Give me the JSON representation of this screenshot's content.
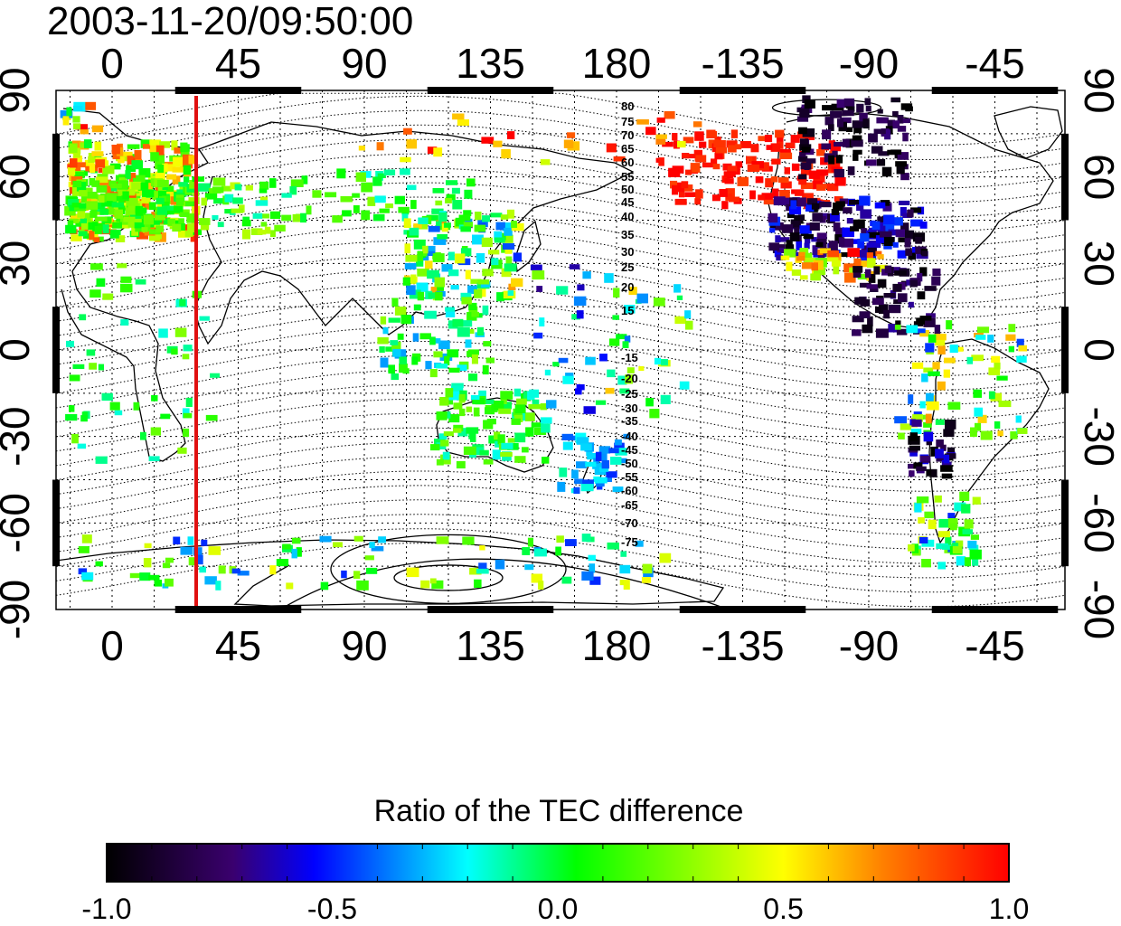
{
  "timestamp": "2003-11-20/09:50:00",
  "map": {
    "longitude_ticks": [
      "0",
      "45",
      "90",
      "135",
      "180",
      "-135",
      "-90",
      "-45"
    ],
    "latitude_ticks": [
      "90",
      "60",
      "30",
      "0",
      "-30",
      "-60",
      "-90"
    ],
    "contour_labels": [
      "80",
      "75",
      "70",
      "65",
      "60",
      "55",
      "50",
      "45",
      "40",
      "35",
      "30",
      "25",
      "20",
      "15",
      "-15",
      "-20",
      "-25",
      "-30",
      "-35",
      "-40",
      "-45",
      "-50",
      "-55",
      "-60",
      "-65",
      "-70",
      "-75"
    ],
    "marked_longitude": 30,
    "marker_color": "#e01010"
  },
  "colorbar": {
    "title": "Ratio of the TEC difference",
    "ticks": [
      "-1.0",
      "-0.5",
      "0.0",
      "0.5",
      "1.0"
    ],
    "range": [
      -1.0,
      1.0
    ],
    "colors": [
      "#000000",
      "#3a006e",
      "#0000ff",
      "#00ffff",
      "#00ff00",
      "#ffff00",
      "#ff8000",
      "#ff0000"
    ]
  }
}
